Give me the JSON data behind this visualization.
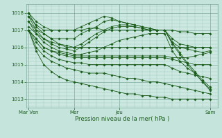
{
  "background_color": "#c4e4dc",
  "plot_bg_color": "#cce8e0",
  "grid_major_color": "#7aaa9a",
  "grid_minor_color": "#9ec8ba",
  "line_color": "#1a5c1a",
  "xlabel": "Pression niveau de la mer( hPa )",
  "xtick_labels": [
    "Mar Ven",
    "Mer",
    "Jeu",
    "Sam"
  ],
  "xtick_positions": [
    0,
    24,
    48,
    96
  ],
  "ytick_values": [
    1013,
    1014,
    1015,
    1016,
    1017,
    1018
  ],
  "ylim": [
    1012.5,
    1018.5
  ],
  "xlim": [
    -1,
    100
  ],
  "series": [
    {
      "x": [
        0,
        4,
        8,
        12,
        16,
        20,
        24,
        28,
        32,
        36,
        40,
        44,
        48,
        52,
        56,
        60,
        64,
        68,
        72,
        76,
        80,
        84,
        88,
        92,
        96
      ],
      "y": [
        1018.0,
        1017.5,
        1017.2,
        1017.0,
        1017.0,
        1017.0,
        1017.0,
        1017.0,
        1017.1,
        1017.1,
        1017.0,
        1017.0,
        1017.0,
        1017.0,
        1017.0,
        1017.0,
        1017.0,
        1017.0,
        1017.0,
        1017.0,
        1016.9,
        1016.9,
        1016.8,
        1016.8,
        1016.8
      ]
    },
    {
      "x": [
        0,
        4,
        8,
        12,
        16,
        20,
        24,
        28,
        32,
        36,
        40,
        44,
        48,
        52,
        56,
        60,
        64,
        68,
        72,
        76,
        80,
        84,
        88,
        92,
        96
      ],
      "y": [
        1017.8,
        1017.3,
        1017.0,
        1017.0,
        1017.0,
        1017.0,
        1017.0,
        1017.2,
        1017.4,
        1017.6,
        1017.8,
        1017.7,
        1017.5,
        1017.4,
        1017.3,
        1017.2,
        1017.1,
        1017.0,
        1017.0,
        1016.5,
        1016.2,
        1016.1,
        1016.0,
        1016.0,
        1016.0
      ]
    },
    {
      "x": [
        0,
        4,
        8,
        12,
        16,
        20,
        24,
        28,
        32,
        36,
        40,
        44,
        48,
        52,
        56,
        60,
        64,
        68,
        72,
        76,
        80,
        84,
        88,
        92,
        96
      ],
      "y": [
        1017.5,
        1017.0,
        1016.8,
        1016.5,
        1016.5,
        1016.5,
        1016.5,
        1016.8,
        1017.0,
        1017.2,
        1017.5,
        1017.6,
        1017.5,
        1017.4,
        1017.3,
        1017.2,
        1017.1,
        1017.0,
        1017.0,
        1016.3,
        1016.0,
        1015.9,
        1015.8,
        1015.7,
        1015.8
      ]
    },
    {
      "x": [
        0,
        4,
        8,
        12,
        16,
        20,
        24,
        28,
        32,
        36,
        40,
        44,
        48,
        52,
        56,
        60,
        64,
        68,
        72,
        76,
        80,
        84,
        88,
        92,
        96
      ],
      "y": [
        1017.2,
        1016.8,
        1016.5,
        1016.3,
        1016.2,
        1016.1,
        1016.0,
        1016.0,
        1016.0,
        1016.0,
        1016.0,
        1016.0,
        1016.0,
        1016.0,
        1016.0,
        1016.0,
        1016.0,
        1016.0,
        1016.0,
        1016.0,
        1016.0,
        1016.0,
        1016.0,
        1016.0,
        1016.0
      ]
    },
    {
      "x": [
        0,
        4,
        8,
        12,
        16,
        20,
        24,
        28,
        32,
        36,
        40,
        44,
        48,
        52,
        56,
        60,
        64,
        68,
        72,
        76,
        80,
        84,
        88,
        92,
        96
      ],
      "y": [
        1017.0,
        1016.5,
        1016.0,
        1015.8,
        1015.7,
        1015.6,
        1015.5,
        1015.5,
        1015.5,
        1015.5,
        1015.5,
        1015.5,
        1015.5,
        1015.5,
        1015.5,
        1015.5,
        1015.5,
        1015.5,
        1015.5,
        1015.4,
        1015.4,
        1015.4,
        1015.5,
        1015.6,
        1015.7
      ]
    },
    {
      "x": [
        0,
        4,
        8,
        12,
        16,
        20,
        24,
        28,
        32,
        36,
        40,
        44,
        48,
        52,
        56,
        60,
        64,
        68,
        72,
        76,
        80,
        84,
        88,
        92,
        96
      ],
      "y": [
        1017.0,
        1016.3,
        1015.8,
        1015.5,
        1015.3,
        1015.2,
        1015.1,
        1015.1,
        1015.0,
        1015.0,
        1015.0,
        1015.0,
        1015.0,
        1015.0,
        1015.0,
        1015.0,
        1015.0,
        1015.0,
        1015.0,
        1014.8,
        1014.6,
        1014.5,
        1014.4,
        1014.3,
        1014.2
      ]
    },
    {
      "x": [
        0,
        4,
        8,
        12,
        16,
        20,
        24,
        28,
        32,
        36,
        40,
        44,
        48,
        52,
        56,
        60,
        64,
        68,
        72,
        76,
        80,
        84,
        88,
        92,
        96
      ],
      "y": [
        1017.0,
        1016.0,
        1015.5,
        1015.2,
        1015.0,
        1014.8,
        1014.7,
        1014.6,
        1014.5,
        1014.5,
        1014.5,
        1014.4,
        1014.3,
        1014.2,
        1014.2,
        1014.1,
        1014.0,
        1014.0,
        1013.9,
        1013.8,
        1013.7,
        1013.6,
        1013.5,
        1013.4,
        1013.3
      ]
    },
    {
      "x": [
        0,
        4,
        8,
        12,
        16,
        20,
        24,
        28,
        32,
        36,
        40,
        44,
        48,
        52,
        56,
        60,
        64,
        68,
        72,
        76,
        80,
        84,
        88,
        92,
        96
      ],
      "y": [
        1017.0,
        1015.8,
        1015.0,
        1014.6,
        1014.3,
        1014.1,
        1014.0,
        1013.9,
        1013.8,
        1013.7,
        1013.6,
        1013.5,
        1013.4,
        1013.3,
        1013.3,
        1013.2,
        1013.2,
        1013.1,
        1013.1,
        1013.0,
        1013.0,
        1013.0,
        1013.0,
        1013.0,
        1013.0
      ]
    },
    {
      "x": [
        0,
        4,
        8,
        12,
        16,
        20,
        24,
        28,
        32,
        36,
        40,
        44,
        48,
        52,
        56,
        60,
        64,
        68,
        72,
        76,
        80,
        84,
        88,
        92,
        96
      ],
      "y": [
        1017.5,
        1016.8,
        1016.3,
        1016.0,
        1015.8,
        1015.7,
        1015.6,
        1015.6,
        1015.7,
        1015.8,
        1016.0,
        1016.2,
        1016.4,
        1016.5,
        1016.6,
        1016.7,
        1016.8,
        1016.8,
        1016.8,
        1015.8,
        1015.2,
        1014.8,
        1014.5,
        1014.0,
        1013.5
      ]
    },
    {
      "x": [
        0,
        4,
        8,
        12,
        16,
        20,
        24,
        28,
        32,
        36,
        40,
        44,
        48,
        52,
        56,
        60,
        64,
        68,
        72,
        76,
        80,
        84,
        88,
        92,
        96
      ],
      "y": [
        1017.8,
        1017.0,
        1016.5,
        1016.2,
        1016.0,
        1015.9,
        1015.8,
        1016.0,
        1016.3,
        1016.6,
        1016.9,
        1017.1,
        1017.2,
        1017.2,
        1017.2,
        1017.1,
        1017.0,
        1017.0,
        1017.0,
        1016.2,
        1015.6,
        1015.0,
        1014.5,
        1014.0,
        1013.6
      ]
    },
    {
      "x": [
        0,
        4,
        8,
        12,
        16,
        20,
        24,
        28,
        32,
        36,
        40,
        44,
        48,
        52,
        56,
        60,
        64,
        68,
        72,
        76,
        80,
        84,
        88,
        92,
        96
      ],
      "y": [
        1018.0,
        1017.2,
        1016.8,
        1016.5,
        1016.2,
        1016.0,
        1016.0,
        1016.2,
        1016.5,
        1016.8,
        1017.0,
        1017.2,
        1017.3,
        1017.3,
        1017.2,
        1017.1,
        1017.0,
        1017.0,
        1017.0,
        1016.3,
        1015.7,
        1015.1,
        1014.6,
        1014.1,
        1013.7
      ]
    },
    {
      "x": [
        0,
        4,
        8,
        12,
        16,
        20,
        24,
        28,
        32,
        36,
        40,
        44,
        48,
        52,
        56,
        60,
        64,
        68,
        72,
        76,
        80,
        84,
        88,
        92,
        96
      ],
      "y": [
        1017.0,
        1016.5,
        1016.0,
        1015.8,
        1015.6,
        1015.5,
        1015.4,
        1015.4,
        1015.4,
        1015.4,
        1015.4,
        1015.4,
        1015.4,
        1015.4,
        1015.4,
        1015.4,
        1015.4,
        1015.4,
        1015.4,
        1015.3,
        1015.2,
        1015.1,
        1015.0,
        1015.0,
        1015.0
      ]
    }
  ]
}
